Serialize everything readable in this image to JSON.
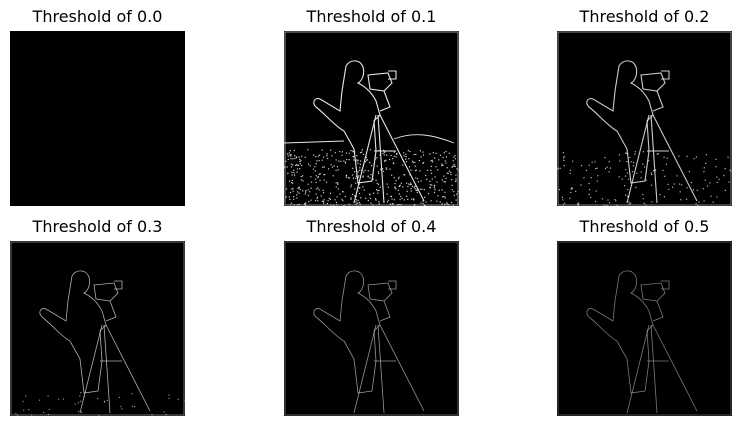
{
  "figure": {
    "background_color": "#ffffff",
    "image_color": "#000000",
    "edge_color": "#e8e8e8",
    "panels": [
      {
        "title": "Threshold of 0.0",
        "threshold": 0.0
      },
      {
        "title": "Threshold of 0.1",
        "threshold": 0.1
      },
      {
        "title": "Threshold of 0.2",
        "threshold": 0.2
      },
      {
        "title": "Threshold of 0.3",
        "threshold": 0.3
      },
      {
        "title": "Threshold of 0.4",
        "threshold": 0.4
      },
      {
        "title": "Threshold of 0.5",
        "threshold": 0.5
      }
    ]
  }
}
